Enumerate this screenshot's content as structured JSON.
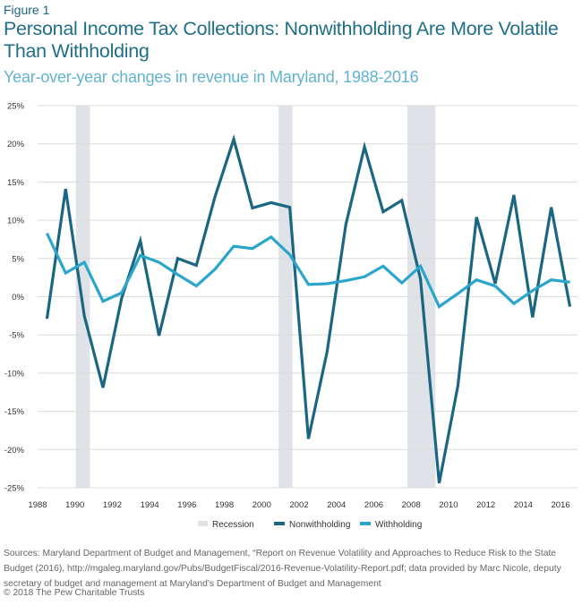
{
  "figure_label": "Figure 1",
  "chart_data": {
    "type": "line",
    "title": "Personal Income Tax Collections: Nonwithholding Are More Volatile Than Withholding",
    "subtitle": "Year-over-year changes in revenue in Maryland, 1988-2016",
    "xlabel": "",
    "ylabel": "",
    "x": [
      1988,
      1989,
      1990,
      1991,
      1992,
      1993,
      1994,
      1995,
      1996,
      1997,
      1998,
      1999,
      2000,
      2001,
      2002,
      2003,
      2004,
      2005,
      2006,
      2007,
      2008,
      2009,
      2010,
      2011,
      2012,
      2013,
      2014,
      2015,
      2016
    ],
    "series": [
      {
        "name": "Nonwithholding",
        "color": "#1b6682",
        "values": [
          -2.9,
          14.1,
          -2.5,
          -11.9,
          -0.2,
          7.3,
          -5.1,
          5.0,
          4.1,
          13.1,
          20.6,
          11.6,
          12.3,
          11.7,
          -18.6,
          -7.2,
          9.4,
          19.6,
          11.1,
          12.6,
          2.3,
          -24.4,
          -11.7,
          10.4,
          1.7,
          13.3,
          -2.7,
          11.7,
          -1.3
        ]
      },
      {
        "name": "Withholding",
        "color": "#2aa6cc",
        "values": [
          8.3,
          3.1,
          4.5,
          -0.6,
          0.5,
          5.4,
          4.5,
          2.9,
          1.4,
          3.6,
          6.6,
          6.3,
          7.8,
          5.5,
          1.6,
          1.7,
          2.1,
          2.6,
          4.0,
          1.8,
          4.0,
          -1.3,
          0.4,
          2.2,
          1.4,
          -0.9,
          0.8,
          2.2,
          1.9
        ]
      }
    ],
    "recessions": [
      [
        1990.05,
        1990.8
      ],
      [
        2000.9,
        2001.65
      ],
      [
        2007.8,
        2009.3
      ]
    ],
    "recession_label": "Recession",
    "recession_color": "#dfe3e7",
    "xlim": [
      1988,
      2017
    ],
    "ylim": [
      -25,
      25
    ],
    "yticks": [
      25,
      20,
      15,
      10,
      5,
      0,
      -5,
      -10,
      -15,
      -20,
      -25
    ],
    "ytick_labels": [
      "25%",
      "20%",
      "15%",
      "10%",
      "5%",
      "0%",
      "-5%",
      "-10%",
      "-15%",
      "-20%",
      "-25%"
    ],
    "xticks": [
      "1988",
      "1990",
      "1992",
      "1994",
      "1996",
      "1998",
      "2000",
      "2002",
      "2004",
      "2006",
      "2008",
      "2010",
      "2012",
      "2014",
      "2016"
    ],
    "grid": true,
    "legend": "bottom-center"
  },
  "sources": "Sources: Maryland Department of Budget and Management, “Report on Revenue Volatility and Approaches to Reduce Risk to the State Budget (2016), http://mgaleg.maryland.gov/Pubs/BudgetFiscal/2016-Revenue-Volatility-Report.pdf; data provided by Marc Nicole, deputy secretary of budget and management at Maryland’s Department of Budget and Management",
  "copyright": "© 2018 The Pew Charitable Trusts"
}
